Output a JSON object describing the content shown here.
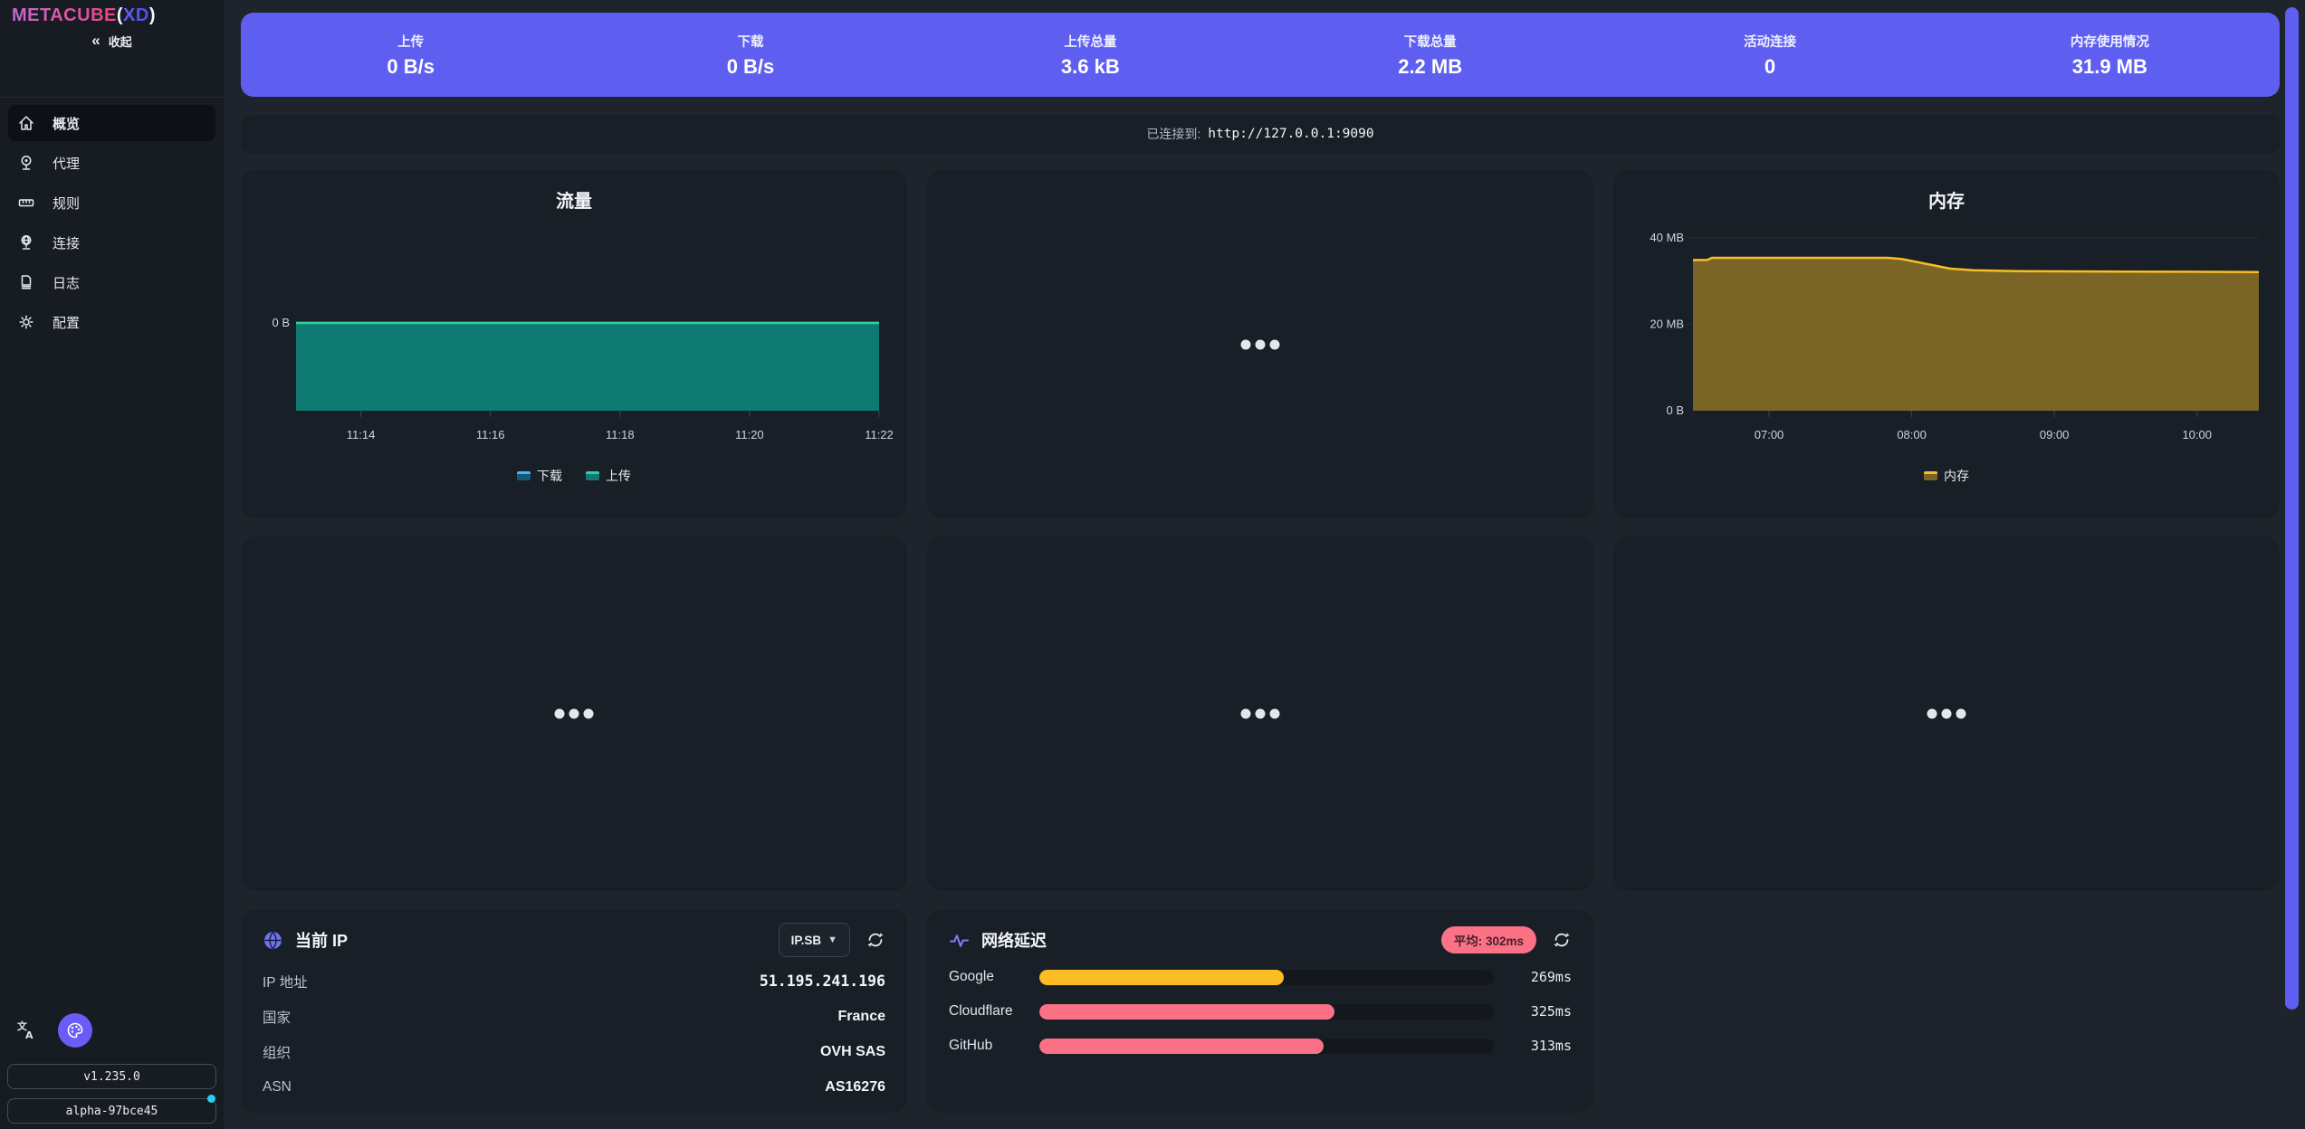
{
  "colors": {
    "accent": "#5e5ff1",
    "panel": "#191f26",
    "sidebar": "#171c22",
    "page_bg": "#1e242b",
    "download": "#38bdf8",
    "upload": "#31ce9e",
    "memory": "#fbbd23",
    "latency_slow": "#fb7185",
    "latency_ok": "#fbbd23",
    "badge": "#fb7185",
    "status_dot": "#26d0ee"
  },
  "sidebar": {
    "logo": {
      "brand": "METACUBE",
      "paren_open": "(",
      "xd": "XD",
      "paren_close": ")"
    },
    "collapse": {
      "icon": "«",
      "label": "收起"
    },
    "items": [
      {
        "label": "概览",
        "icon": "home-icon",
        "active": true
      },
      {
        "label": "代理",
        "icon": "proxies-icon",
        "active": false
      },
      {
        "label": "规则",
        "icon": "rules-icon",
        "active": false
      },
      {
        "label": "连接",
        "icon": "connections-icon",
        "active": false
      },
      {
        "label": "日志",
        "icon": "logs-icon",
        "active": false
      },
      {
        "label": "配置",
        "icon": "config-icon",
        "active": false
      }
    ],
    "version": "v1.235.0",
    "build": "alpha-97bce45"
  },
  "stats": [
    {
      "label": "上传",
      "value": "0 B/s"
    },
    {
      "label": "下载",
      "value": "0 B/s"
    },
    {
      "label": "上传总量",
      "value": "3.6 kB"
    },
    {
      "label": "下载总量",
      "value": "2.2 MB"
    },
    {
      "label": "活动连接",
      "value": "0"
    },
    {
      "label": "内存使用情况",
      "value": "31.9 MB"
    }
  ],
  "connection": {
    "prefix": "已连接到:",
    "url": "http://127.0.0.1:9090"
  },
  "chart_data": [
    {
      "id": "traffic",
      "type": "area",
      "title": "流量",
      "x_domain": [
        "11:13",
        "11:22"
      ],
      "x_ticks": [
        "11:14",
        "11:16",
        "11:18",
        "11:20",
        "11:22"
      ],
      "y_ticks": [
        "0 B"
      ],
      "series": [
        {
          "name": "下载",
          "color": "#38bdf8",
          "fill": "#145a74",
          "values": [
            0,
            0,
            0,
            0,
            0,
            0,
            0,
            0,
            0,
            0
          ]
        },
        {
          "name": "上传",
          "color": "#31ce9e",
          "fill": "#0e7a72",
          "values": [
            0,
            0,
            0,
            0,
            0,
            0,
            0,
            0,
            0,
            0
          ]
        }
      ],
      "legend_position": "bottom",
      "note": "both series flat at 0 B/s, area fill extends from the zero baseline to the plot bottom"
    },
    {
      "id": "memory",
      "type": "area",
      "title": "内存",
      "x_domain": [
        "06:28",
        "10:26"
      ],
      "x_ticks": [
        "07:00",
        "08:00",
        "09:00",
        "10:00"
      ],
      "y_ticks_mb": [
        0,
        20,
        40
      ],
      "y_tick_labels": [
        "0 B",
        "20 MB",
        "40 MB"
      ],
      "series": [
        {
          "name": "内存",
          "color": "#fbbd23",
          "fill": "#7a6526",
          "points_time_mb": [
            [
              "06:28",
              34.9
            ],
            [
              "06:34",
              34.9
            ],
            [
              "06:36",
              35.4
            ],
            [
              "07:50",
              35.4
            ],
            [
              "07:56",
              35.1
            ],
            [
              "08:06",
              34.0
            ],
            [
              "08:16",
              32.9
            ],
            [
              "08:26",
              32.5
            ],
            [
              "08:45",
              32.3
            ],
            [
              "09:30",
              32.2
            ],
            [
              "10:26",
              32.1
            ]
          ]
        }
      ],
      "legend_position": "bottom"
    }
  ],
  "current_ip": {
    "title": "当前 IP",
    "source_button": "IP.SB",
    "rows": [
      {
        "label": "IP 地址",
        "value": "51.195.241.196"
      },
      {
        "label": "国家",
        "value": "France"
      },
      {
        "label": "组织",
        "value": "OVH SAS"
      },
      {
        "label": "ASN",
        "value": "AS16276"
      }
    ]
  },
  "latency": {
    "title": "网络延迟",
    "average_badge": "平均: 302ms",
    "scale_max_ms": 500,
    "rows": [
      {
        "site": "Google",
        "ms": 269,
        "label": "269ms",
        "color": "#fbbd23"
      },
      {
        "site": "Cloudflare",
        "ms": 325,
        "label": "325ms",
        "color": "#fb7185"
      },
      {
        "site": "GitHub",
        "ms": 313,
        "label": "313ms",
        "color": "#fb7185"
      }
    ]
  }
}
